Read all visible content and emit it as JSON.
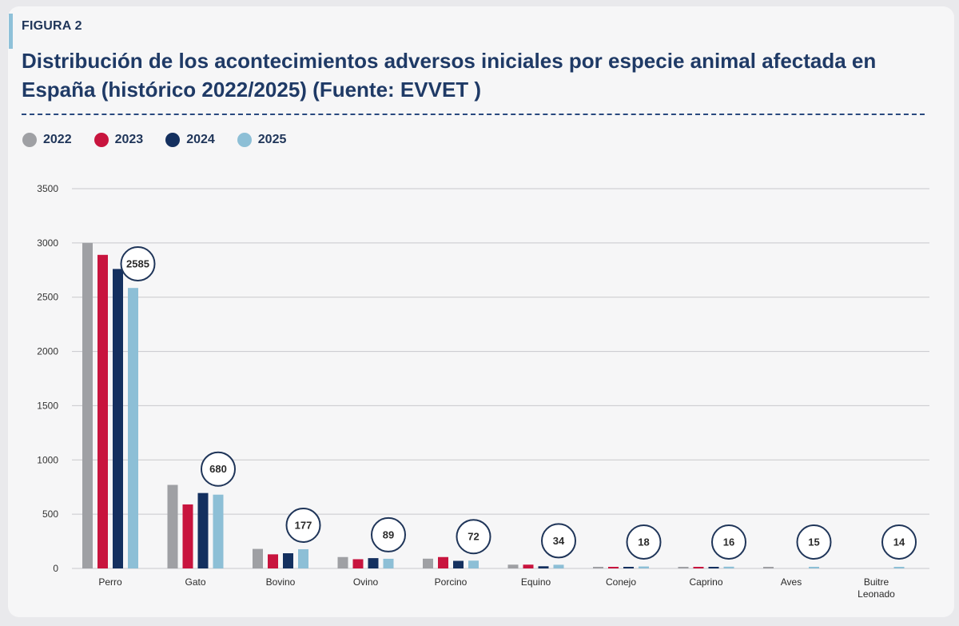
{
  "figure": {
    "label": "FIGURA 2",
    "title": "Distribución de los acontecimientos adversos iniciales por especie animal afectada en España (histórico 2022/2025) (Fuente: EVVET )"
  },
  "colors": {
    "2022": "#9fa0a4",
    "2023": "#c8143e",
    "2024": "#14305f",
    "2025": "#8dbfd6",
    "title": "#1f3a66",
    "grid": "#c8c8cc",
    "badge_border": "#1f3559"
  },
  "chart_data": {
    "type": "bar",
    "title": "Distribución de los acontecimientos adversos iniciales por especie animal afectada en España (histórico 2022/2025) (Fuente: EVVET )",
    "xlabel": "",
    "ylabel": "",
    "ylim": [
      0,
      3500
    ],
    "yticks": [
      0,
      500,
      1000,
      1500,
      2000,
      2500,
      3000,
      3500
    ],
    "grid": true,
    "legend_position": "top-left",
    "categories": [
      "Perro",
      "Gato",
      "Bovino",
      "Ovino",
      "Porcino",
      "Equino",
      "Conejo",
      "Caprino",
      "Aves",
      "Buitre Leonado"
    ],
    "category_lines": [
      [
        "Perro"
      ],
      [
        "Gato"
      ],
      [
        "Bovino"
      ],
      [
        "Ovino"
      ],
      [
        "Porcino"
      ],
      [
        "Equino"
      ],
      [
        "Conejo"
      ],
      [
        "Caprino"
      ],
      [
        "Aves"
      ],
      [
        "Buitre",
        "Leonado"
      ]
    ],
    "series": [
      {
        "name": "2022",
        "color": "#9fa0a4",
        "values": [
          3000,
          770,
          180,
          105,
          90,
          35,
          12,
          10,
          10,
          0
        ]
      },
      {
        "name": "2023",
        "color": "#c8143e",
        "values": [
          2890,
          590,
          130,
          85,
          105,
          35,
          10,
          2,
          0,
          0
        ]
      },
      {
        "name": "2024",
        "color": "#14305f",
        "values": [
          2760,
          695,
          140,
          95,
          70,
          20,
          10,
          12,
          0,
          0
        ]
      },
      {
        "name": "2025",
        "color": "#8dbfd6",
        "values": [
          2585,
          680,
          177,
          89,
          72,
          34,
          18,
          16,
          15,
          14
        ]
      }
    ],
    "annotations": [
      "2585",
      "680",
      "177",
      "89",
      "72",
      "34",
      "18",
      "16",
      "15",
      "14"
    ]
  }
}
